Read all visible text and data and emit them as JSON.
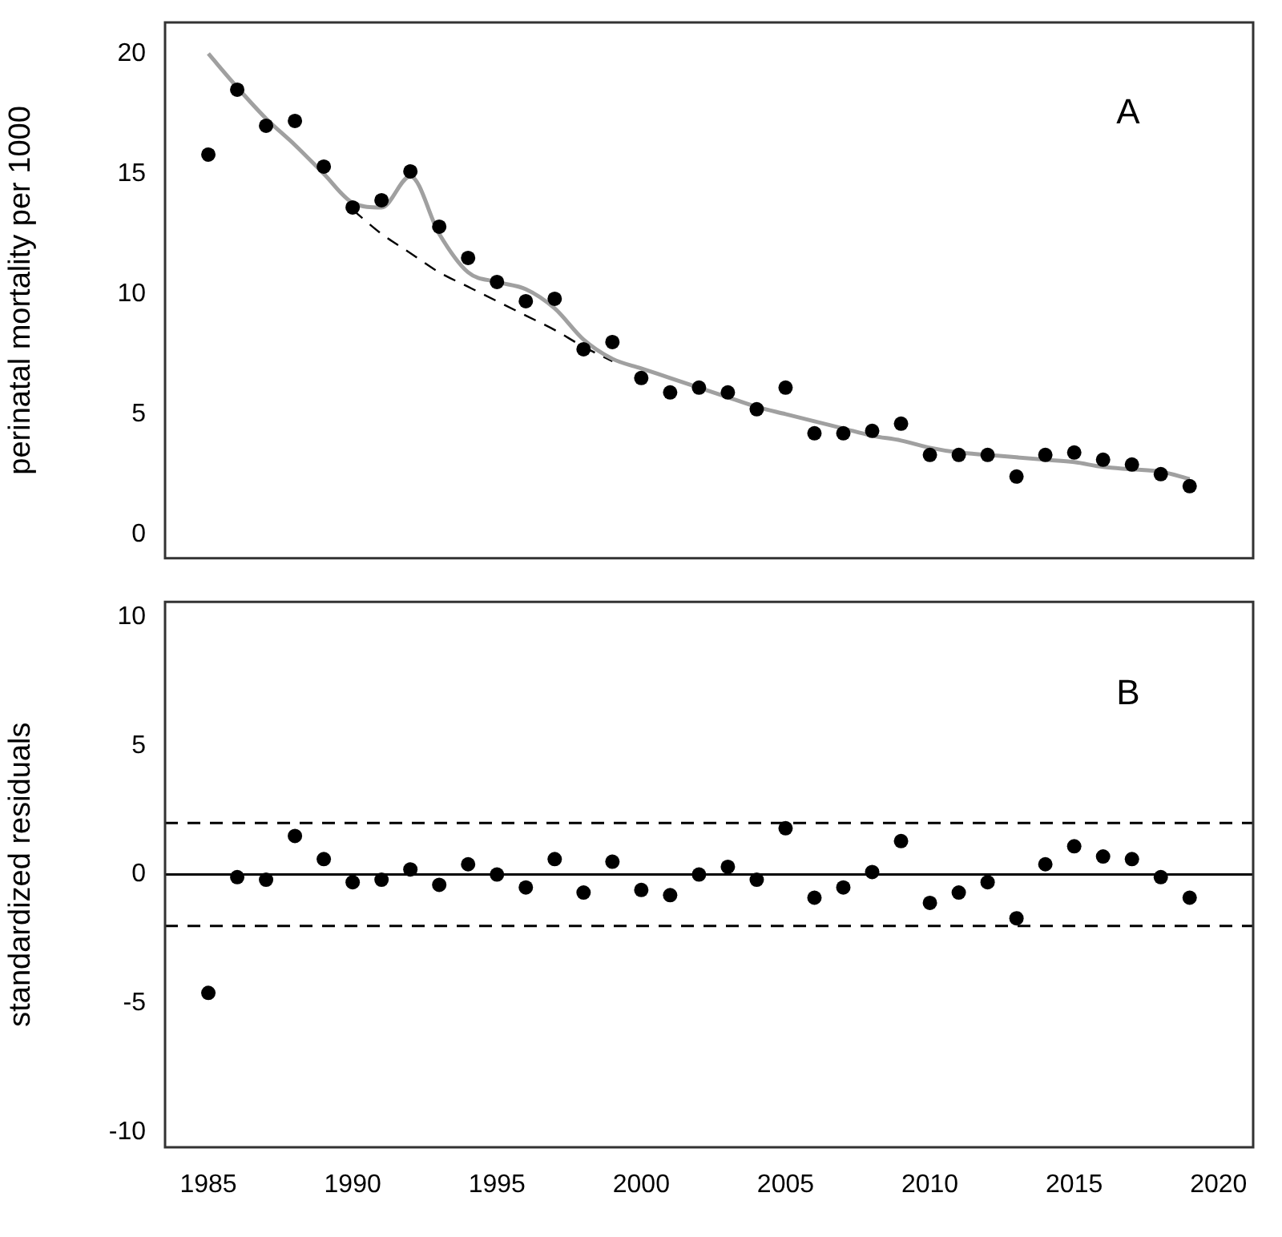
{
  "chart_data": [
    {
      "type": "scatter",
      "ylabel": "perinatal mortality per 1000",
      "annotations": [
        "A"
      ],
      "xlim": [
        1983.5,
        2021.2
      ],
      "ylim": [
        -1,
        21.3
      ],
      "yticks": [
        0,
        5,
        10,
        15,
        20
      ],
      "tick_labels": "y",
      "grid": false,
      "legend": false,
      "series": [
        {
          "type": "line",
          "color": "#a0a0a0",
          "marker": "none",
          "line_style": "solid",
          "x": [
            1985,
            1986,
            1987,
            1988,
            1989,
            1990,
            1991,
            1992,
            1993,
            1994,
            1995,
            1996,
            1997,
            1998,
            1999,
            2000,
            2001,
            2002,
            2003,
            2004,
            2005,
            2006,
            2007,
            2008,
            2009,
            2010,
            2011,
            2012,
            2013,
            2014,
            2015,
            2016,
            2017,
            2018,
            2019
          ],
          "values": [
            20,
            18.6,
            17.3,
            16.2,
            15.0,
            13.8,
            13.6,
            14.9,
            12.5,
            10.9,
            10.5,
            10.2,
            9.4,
            8.1,
            7.3,
            6.9,
            6.5,
            6.1,
            5.7,
            5.3,
            5.0,
            4.7,
            4.4,
            4.1,
            3.9,
            3.6,
            3.4,
            3.3,
            3.2,
            3.1,
            3.0,
            2.8,
            2.7,
            2.6,
            2.3
          ]
        },
        {
          "type": "line",
          "color": "#000000",
          "marker": "none",
          "line_style": "dashed",
          "x": [
            1990,
            1991,
            1992,
            1993,
            1994,
            1995,
            1996,
            1997,
            1998,
            1999
          ],
          "values": [
            13.5,
            12.5,
            11.7,
            10.9,
            10.3,
            9.7,
            9.1,
            8.5,
            7.8,
            7.2
          ]
        },
        {
          "color": "#000000",
          "marker": "circle",
          "x": [
            1985,
            1986,
            1987,
            1988,
            1989,
            1990,
            1991,
            1992,
            1993,
            1994,
            1995,
            1996,
            1997,
            1998,
            1999,
            2000,
            2001,
            2002,
            2003,
            2004,
            2005,
            2006,
            2007,
            2008,
            2009,
            2010,
            2011,
            2012,
            2013,
            2014,
            2015,
            2016,
            2017,
            2018,
            2019
          ],
          "values": [
            15.8,
            18.5,
            17.0,
            17.2,
            15.3,
            13.6,
            13.9,
            15.1,
            12.8,
            11.5,
            10.5,
            9.7,
            9.8,
            7.7,
            8.0,
            6.5,
            5.9,
            6.1,
            5.9,
            5.2,
            6.1,
            4.2,
            4.2,
            4.3,
            4.6,
            3.3,
            3.3,
            3.3,
            2.4,
            3.3,
            3.4,
            3.1,
            2.9,
            2.5,
            2.0
          ]
        }
      ]
    },
    {
      "type": "scatter",
      "ylabel": "standardized residuals",
      "annotations": [
        "B"
      ],
      "xlim": [
        1983.5,
        2021.2
      ],
      "xticks": [
        1985,
        1990,
        1995,
        2000,
        2005,
        2010,
        2015,
        2020
      ],
      "ylim": [
        -10.6,
        10.6
      ],
      "yticks": [
        -10,
        -5,
        0,
        5,
        10
      ],
      "grid": false,
      "legend": false,
      "ref_lines": [
        {
          "axis": "y",
          "value": 0,
          "color": "#000000",
          "line_style": "solid"
        },
        {
          "axis": "y",
          "value": 2,
          "color": "#000000",
          "line_style": "dashed"
        },
        {
          "axis": "y",
          "value": -2,
          "color": "#000000",
          "line_style": "dashed"
        }
      ],
      "series": [
        {
          "color": "#000000",
          "marker": "circle",
          "x": [
            1985,
            1986,
            1987,
            1988,
            1989,
            1990,
            1991,
            1992,
            1993,
            1994,
            1995,
            1996,
            1997,
            1998,
            1999,
            2000,
            2001,
            2002,
            2003,
            2004,
            2005,
            2006,
            2007,
            2008,
            2009,
            2010,
            2011,
            2012,
            2013,
            2014,
            2015,
            2016,
            2017,
            2018,
            2019
          ],
          "values": [
            -4.6,
            -0.1,
            -0.2,
            1.5,
            0.6,
            -0.3,
            -0.2,
            0.2,
            -0.4,
            0.4,
            0,
            -0.5,
            0.6,
            -0.7,
            0.5,
            -0.6,
            -0.8,
            0,
            0.3,
            -0.2,
            1.8,
            -0.9,
            -0.5,
            0.1,
            1.3,
            -1.1,
            -0.7,
            -0.3,
            -1.7,
            0.4,
            1.1,
            0.7,
            0.6,
            -0.1,
            -0.9
          ]
        }
      ]
    }
  ]
}
